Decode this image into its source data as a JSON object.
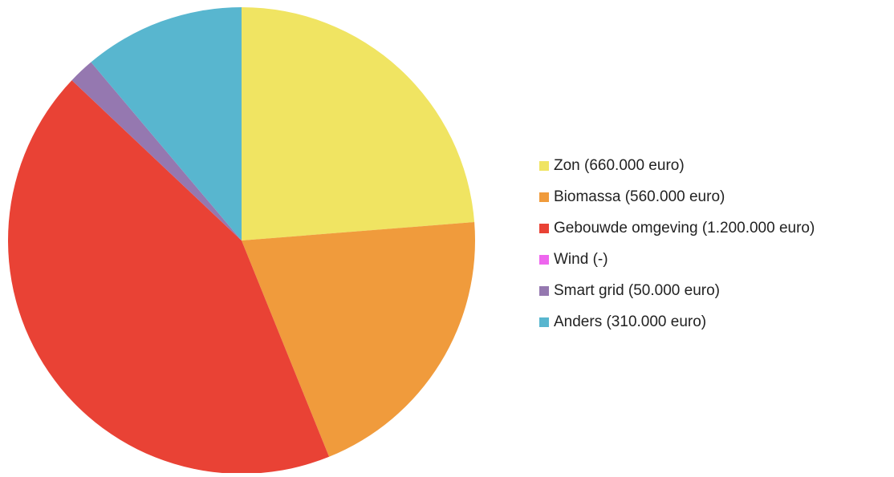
{
  "chart_data": {
    "type": "pie",
    "categories": [
      "Zon (660.000 euro)",
      "Biomassa (560.000 euro)",
      "Gebouwde omgeving (1.200.000 euro)",
      "Wind (-)",
      "Smart grid (50.000 euro)",
      "Anders (310.000 euro)"
    ],
    "values": [
      660000,
      560000,
      1200000,
      null,
      50000,
      310000
    ],
    "colors": [
      "#f0e462",
      "#f09b3c",
      "#e94235",
      "#ee66ee",
      "#9578b0",
      "#58b6cf"
    ],
    "legend": "right"
  }
}
